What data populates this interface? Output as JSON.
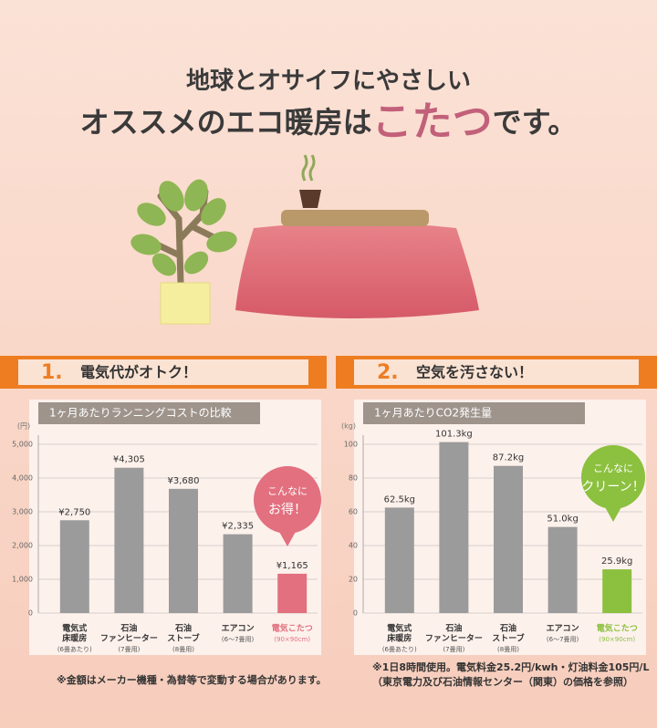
{
  "headline": {
    "line1": "地球とオサイフにやさしい",
    "line2_prefix": "オススメのエコ暖房は",
    "line2_highlight": "こたつ",
    "line2_suffix": "です。"
  },
  "chart_data": [
    {
      "type": "bar",
      "section": {
        "number": "1.",
        "title": "電気代がオトク！"
      },
      "title": "1ヶ月あたりランニングコストの比較",
      "unit": "(円)",
      "categories": [
        [
          "電気式",
          "床暖房"
        ],
        [
          "石油",
          "ファンヒーター"
        ],
        [
          "石油",
          "ストーブ"
        ],
        [
          "エアコン"
        ],
        [
          "電気こたつ"
        ]
      ],
      "category_notes": [
        "(6畳あたり)",
        "(7畳用)",
        "(8畳用)",
        "(6～7畳用)",
        "(90×90cm)"
      ],
      "values": [
        2750,
        4305,
        3680,
        2335,
        1165
      ],
      "value_labels": [
        "¥2,750",
        "¥4,305",
        "¥3,680",
        "¥2,335",
        "¥1,165"
      ],
      "colors": [
        "#9b9b9b",
        "#9b9b9b",
        "#9b9b9b",
        "#9b9b9b",
        "#e2707f"
      ],
      "ylim": [
        0,
        5000
      ],
      "yticks": [
        0,
        {
          "value": 1000,
          "label": "1,000"
        },
        {
          "value": 2000,
          "label": "2,000"
        },
        {
          "value": 3000,
          "label": "3,000"
        },
        {
          "value": 4000,
          "label": "4,000"
        },
        {
          "value": 5000,
          "label": "5,000"
        }
      ],
      "grid": true,
      "annotation": [
        "こんなに",
        "お得！"
      ],
      "footnote": [
        "※金額はメーカー機種・為替等で変動する場合があります。"
      ]
    },
    {
      "type": "bar",
      "section": {
        "number": "2.",
        "title": "空気を汚さない！"
      },
      "title": "1ヶ月あたりCO2発生量",
      "unit": "(kg)",
      "categories": [
        [
          "電気式",
          "床暖房"
        ],
        [
          "石油",
          "ファンヒーター"
        ],
        [
          "石油",
          "ストーブ"
        ],
        [
          "エアコン"
        ],
        [
          "電気こたつ"
        ]
      ],
      "category_notes": [
        "(6畳あたり)",
        "(7畳用)",
        "(8畳用)",
        "(6～7畳用)",
        "(90×90cm)"
      ],
      "values": [
        62.5,
        101.3,
        87.2,
        51.0,
        25.9
      ],
      "value_labels": [
        "62.5kg",
        "101.3kg",
        "87.2kg",
        "51.0kg",
        "25.9kg"
      ],
      "colors": [
        "#9b9b9b",
        "#9b9b9b",
        "#9b9b9b",
        "#9b9b9b",
        "#8cc03f"
      ],
      "ylim": [
        0,
        100
      ],
      "yticks": [
        0,
        20,
        40,
        60,
        80,
        100
      ],
      "grid": true,
      "annotation": [
        "こんなに",
        "クリーン！"
      ],
      "footnote": [
        "※1日8時間使用。電気料金25.2円/kwh・灯油料金105円/L",
        "（東京電力及び石油情報センター（関東）の価格を参照）"
      ]
    }
  ]
}
